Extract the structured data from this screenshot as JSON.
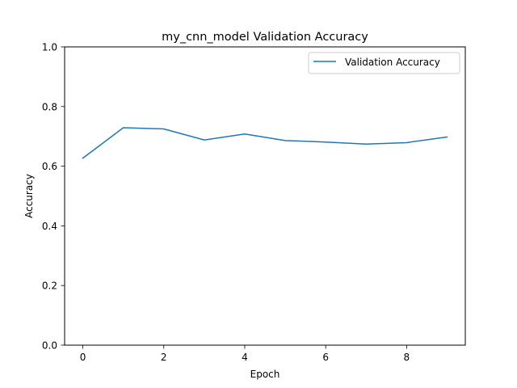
{
  "chart_data": {
    "type": "line",
    "title": "my_cnn_model Validation Accuracy",
    "xlabel": "Epoch",
    "ylabel": "Accuracy",
    "xlim": [
      -0.45,
      9.45
    ],
    "ylim": [
      0,
      1
    ],
    "xticks": [
      0,
      2,
      4,
      6,
      8
    ],
    "yticks": [
      0.0,
      0.2,
      0.4,
      0.6,
      0.8,
      1.0
    ],
    "grid": false,
    "legend_position": "top-right",
    "series": [
      {
        "name": "Validation Accuracy",
        "color": "#1f77b4",
        "x": [
          0,
          1,
          2,
          3,
          4,
          5,
          6,
          7,
          8,
          9
        ],
        "y": [
          0.627,
          0.729,
          0.725,
          0.688,
          0.708,
          0.686,
          0.681,
          0.674,
          0.679,
          0.698
        ]
      }
    ]
  }
}
